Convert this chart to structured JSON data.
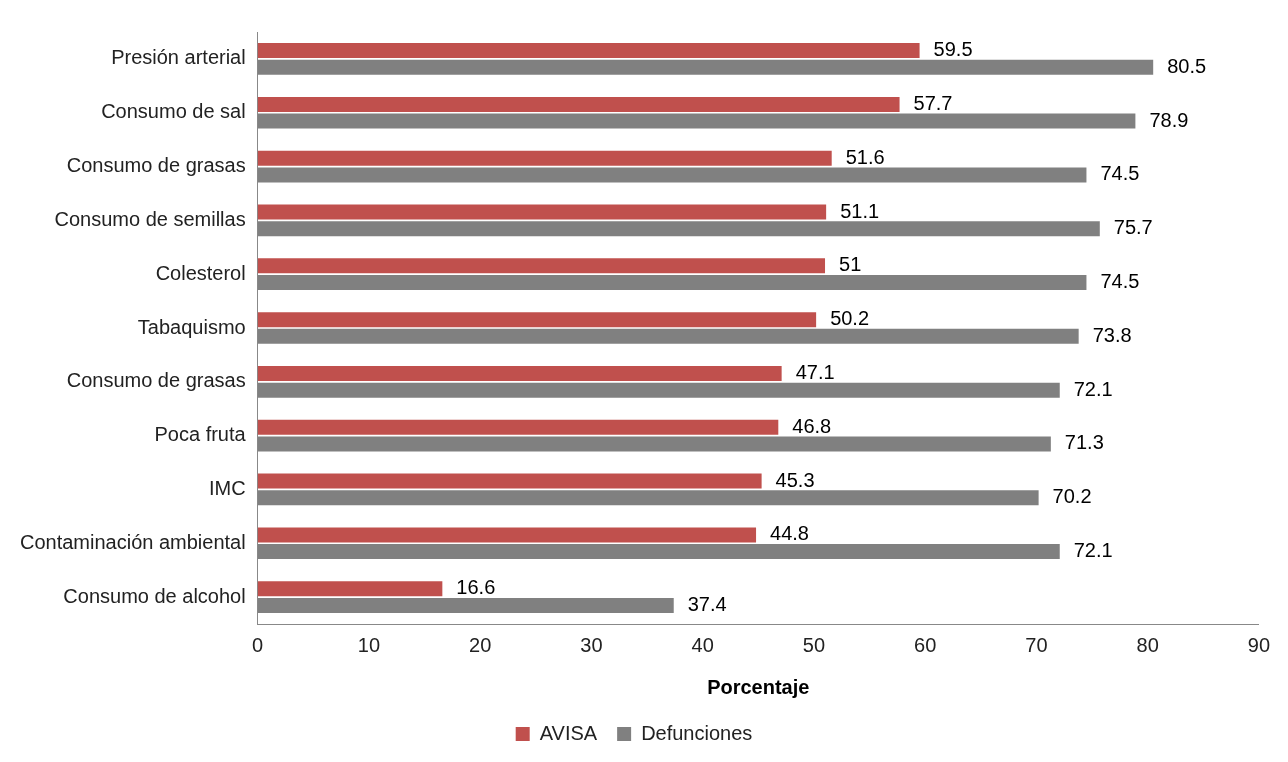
{
  "chart_data": {
    "type": "bar",
    "orientation": "horizontal",
    "xlabel": "Porcentaje",
    "categories": [
      "Presión arterial",
      "Consumo de sal",
      "Consumo de grasas",
      "Consumo de semillas",
      "Colesterol",
      "Tabaquismo",
      "Consumo de grasas",
      "Poca fruta",
      "IMC",
      "Contaminación ambiental",
      "Consumo de alcohol"
    ],
    "series": [
      {
        "name": "AVISA",
        "color": "#c0504d",
        "values": [
          59.5,
          57.7,
          51.6,
          51.1,
          51,
          50.2,
          47.1,
          46.8,
          45.3,
          44.8,
          16.6
        ]
      },
      {
        "name": "Defunciones",
        "color": "#808080",
        "values": [
          80.5,
          78.9,
          74.5,
          75.7,
          74.5,
          73.8,
          72.1,
          71.3,
          70.2,
          72.1,
          37.4
        ]
      }
    ],
    "xlim": [
      0,
      90
    ],
    "xticks": [
      0,
      10,
      20,
      30,
      40,
      50,
      60,
      70,
      80,
      90
    ],
    "grid": false,
    "legend": "bottom",
    "data_labels": true
  }
}
